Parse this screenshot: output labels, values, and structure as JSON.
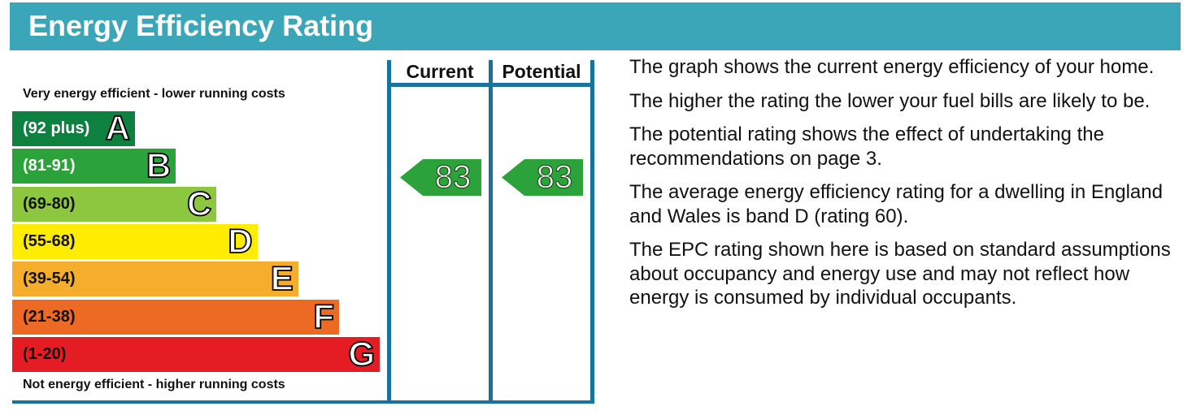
{
  "header": {
    "title": "Energy Efficiency Rating"
  },
  "chart_data": {
    "type": "table",
    "title": "Energy Efficiency Rating",
    "top_label": "Very energy efficient - lower running costs",
    "bottom_label": "Not energy efficient - higher running costs",
    "bands": [
      {
        "letter": "A",
        "range": "(92 plus)",
        "color": "#0e8040",
        "text_color": "#ffffff"
      },
      {
        "letter": "B",
        "range": "(81-91)",
        "color": "#2ba33a",
        "text_color": "#ffffff"
      },
      {
        "letter": "C",
        "range": "(69-80)",
        "color": "#8dc63f",
        "text_color": "#111111"
      },
      {
        "letter": "D",
        "range": "(55-68)",
        "color": "#ffec00",
        "text_color": "#111111"
      },
      {
        "letter": "E",
        "range": "(39-54)",
        "color": "#f4ae2b",
        "text_color": "#111111"
      },
      {
        "letter": "F",
        "range": "(21-38)",
        "color": "#ec6a24",
        "text_color": "#111111"
      },
      {
        "letter": "G",
        "range": "(1-20)",
        "color": "#e31d23",
        "text_color": "#111111"
      }
    ],
    "columns": [
      "Current",
      "Potential"
    ],
    "current": {
      "value": 83,
      "band": "B"
    },
    "potential": {
      "value": 83,
      "band": "B"
    }
  },
  "description": [
    "The graph shows the current energy efficiency of your home.",
    "The higher the rating the lower your fuel bills are likely to be.",
    "The potential rating shows the effect of undertaking the recommendations on page 3.",
    "The average energy efficiency rating for a dwelling in England and Wales is band D (rating 60).",
    "The EPC rating shown here is based on standard assumptions about occupancy and energy use and may not reflect how energy is consumed by individual occupants."
  ]
}
